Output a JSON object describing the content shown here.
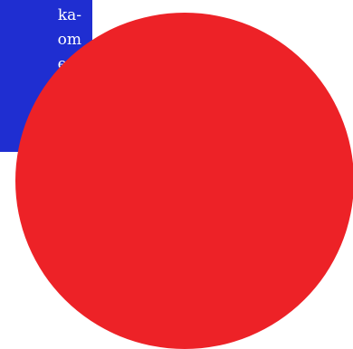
{
  "panel": {
    "lines": [
      "ka-",
      "om",
      "en."
    ],
    "background_color": "#1f2ed1",
    "text_color": "#ffffff"
  },
  "shape": {
    "kind": "circle",
    "fill_color": "#ed2227"
  },
  "page": {
    "background_color": "#ffffff"
  }
}
